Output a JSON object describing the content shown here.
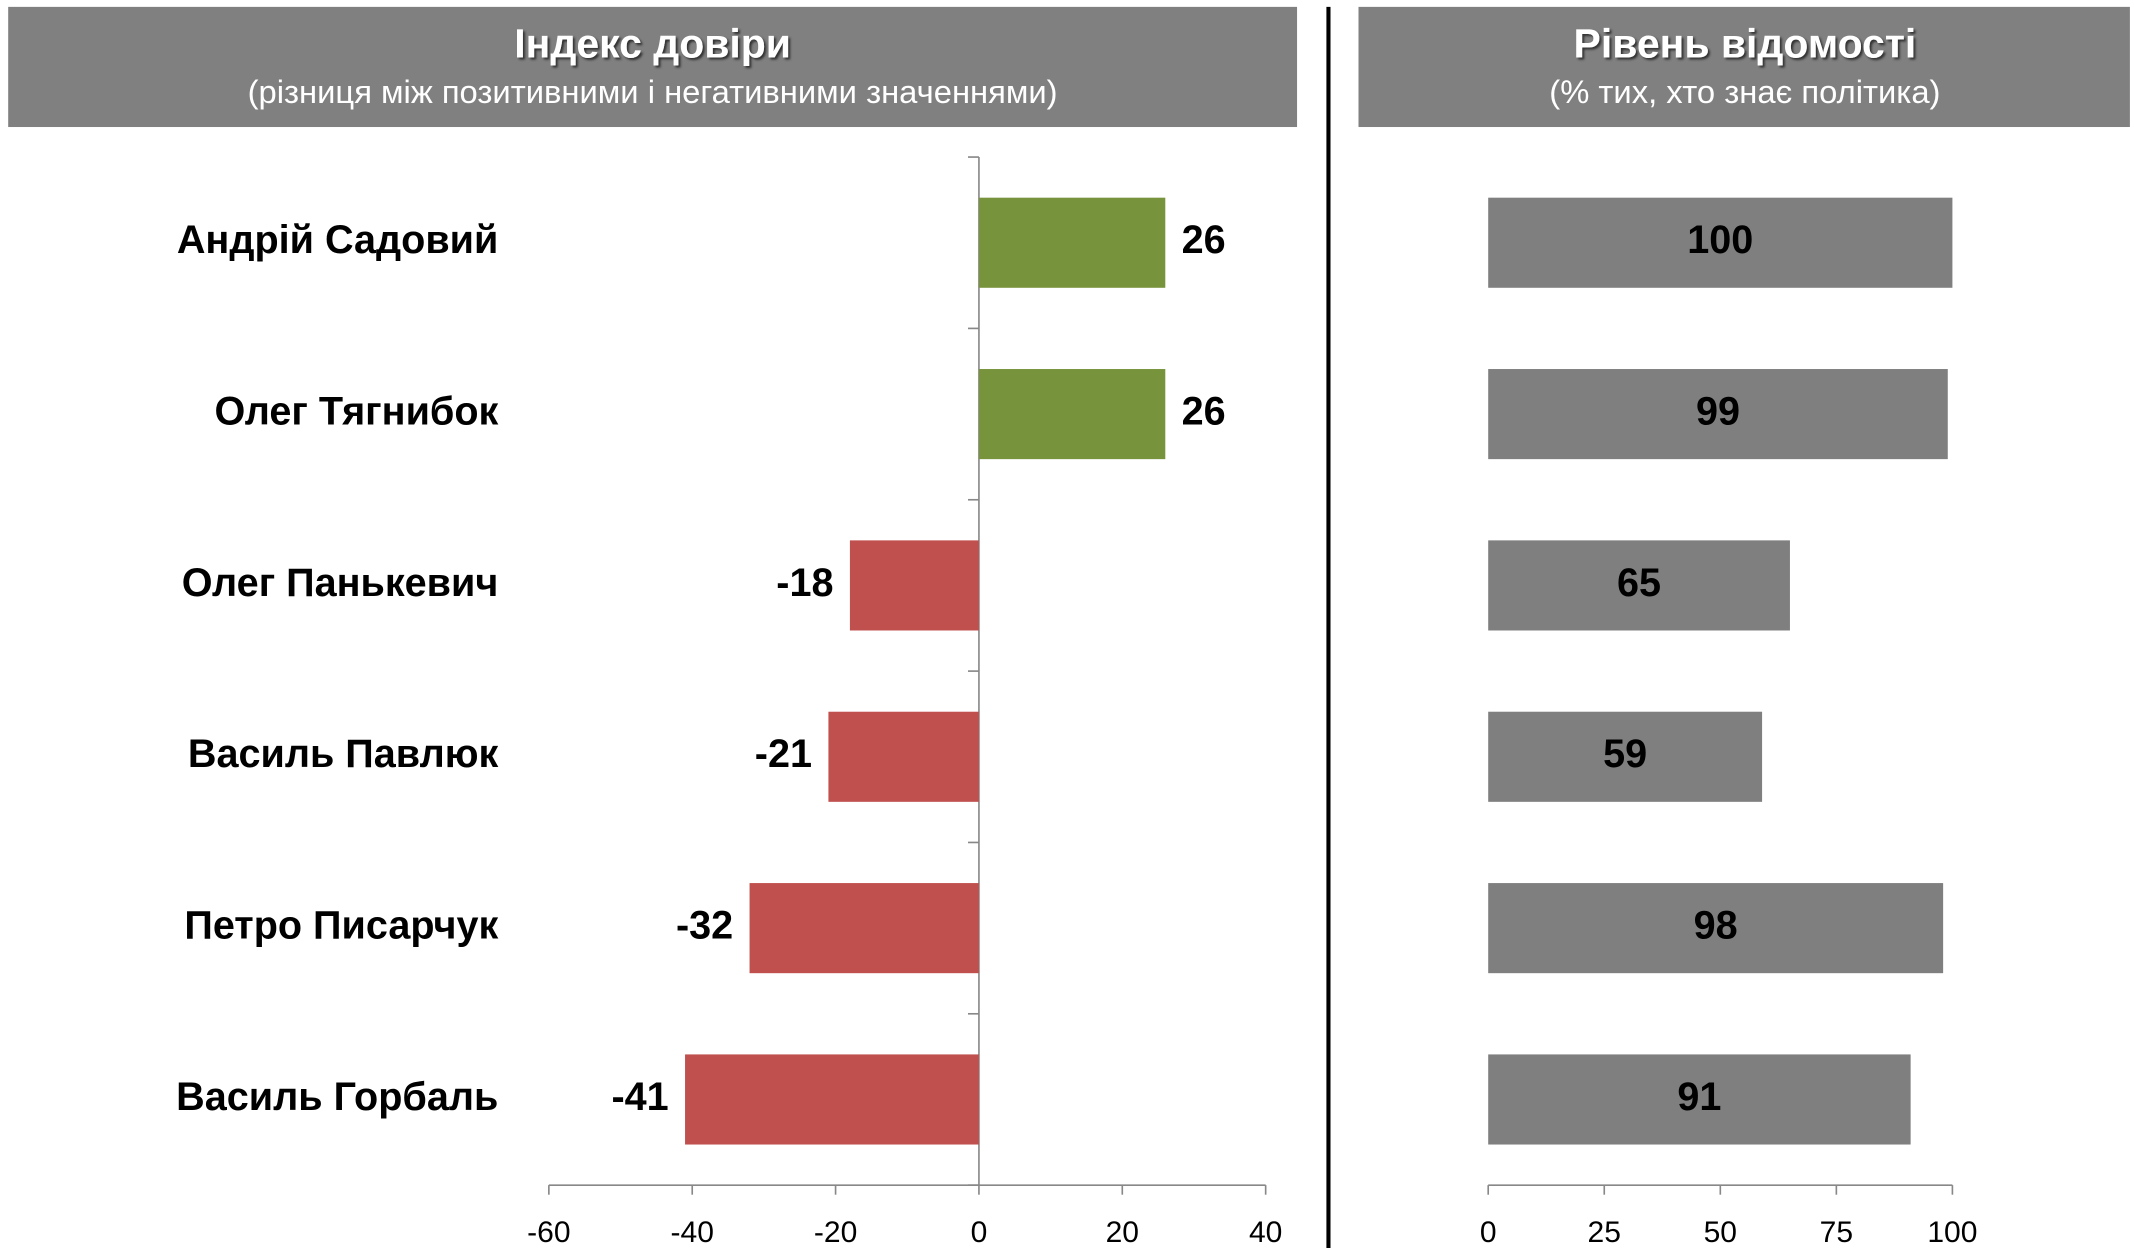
{
  "chart_data": [
    {
      "type": "bar",
      "orientation": "horizontal",
      "title": "Індекс довіри",
      "subtitle": "(різниця між позитивними і негативними значеннями)",
      "categories": [
        "Андрій Садовий",
        "Олег Тягнибок",
        "Олег Панькевич",
        "Василь Павлюк",
        "Петро Писарчук",
        "Василь Горбаль"
      ],
      "values": [
        26,
        26,
        -18,
        -21,
        -32,
        -41
      ],
      "colors": [
        "#77933c",
        "#77933c",
        "#c0504d",
        "#c0504d",
        "#c0504d",
        "#c0504d"
      ],
      "xlim": [
        -60,
        40
      ],
      "xticks": [
        -60,
        -40,
        -20,
        0,
        20,
        40
      ]
    },
    {
      "type": "bar",
      "orientation": "horizontal",
      "title": "Рівень відомості",
      "subtitle": "(% тих, хто знає політика)",
      "values": [
        100,
        99,
        65,
        59,
        98,
        91
      ],
      "color": "#7f7f7f",
      "xlim": [
        0,
        100
      ],
      "xticks": [
        0,
        25,
        50,
        75,
        100
      ]
    }
  ]
}
